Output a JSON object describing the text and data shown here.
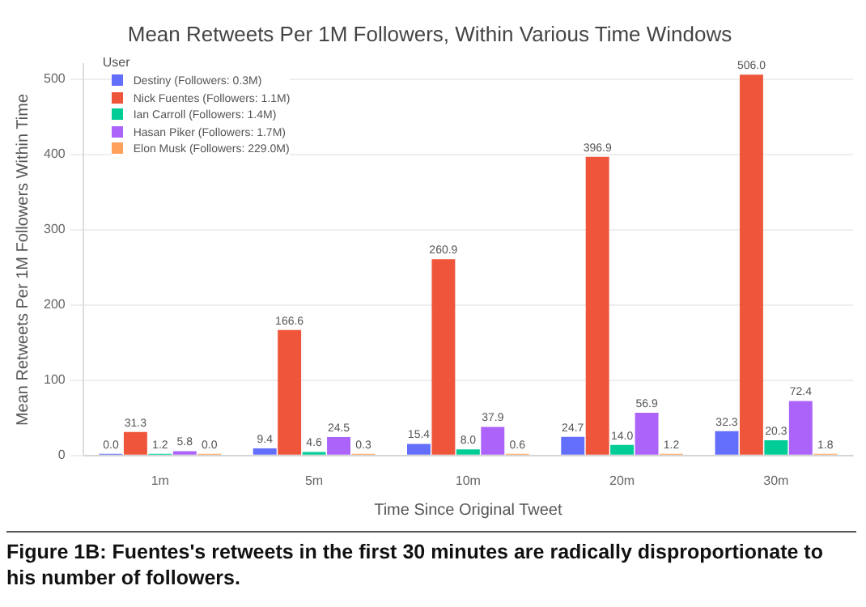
{
  "chart_data": {
    "type": "bar",
    "title": "Mean Retweets Per 1M Followers, Within Various Time Windows",
    "xlabel": "Time Since Original Tweet",
    "ylabel": "Mean Retweets Per 1M Followers Within Time",
    "legend_title": "User",
    "categories": [
      "1m",
      "5m",
      "10m",
      "20m",
      "30m"
    ],
    "series": [
      {
        "name": "Destiny (Followers: 0.3M)",
        "color": "#636efa",
        "values": [
          0.0,
          9.4,
          15.4,
          24.7,
          32.3
        ],
        "value_labels": [
          "0.0",
          "9.4",
          "15.4",
          "24.7",
          "32.3"
        ]
      },
      {
        "name": "Nick Fuentes (Followers: 1.1M)",
        "color": "#ef553b",
        "values": [
          31.3,
          166.6,
          260.9,
          396.9,
          506.0
        ],
        "value_labels": [
          "31.3",
          "166.6",
          "260.9",
          "396.9",
          "506.0"
        ]
      },
      {
        "name": "Ian Carroll (Followers: 1.4M)",
        "color": "#00cc96",
        "values": [
          1.2,
          4.6,
          8.0,
          14.0,
          20.3
        ],
        "value_labels": [
          "1.2",
          "4.6",
          "8.0",
          "14.0",
          "20.3"
        ]
      },
      {
        "name": "Hasan Piker (Followers: 1.7M)",
        "color": "#ab63fa",
        "values": [
          5.8,
          24.5,
          37.9,
          56.9,
          72.4
        ],
        "value_labels": [
          "5.8",
          "24.5",
          "37.9",
          "56.9",
          "72.4"
        ]
      },
      {
        "name": "Elon Musk (Followers: 229.0M)",
        "color": "#ffa15a",
        "values": [
          0.0,
          0.3,
          0.6,
          1.2,
          1.8
        ],
        "value_labels": [
          "0.0",
          "0.3",
          "0.6",
          "1.2",
          "1.8"
        ]
      }
    ],
    "ylim": [
      0,
      520
    ],
    "yticks": [
      0,
      100,
      200,
      300,
      400,
      500
    ],
    "grid": "y",
    "legend": "top left",
    "annotations": [
      "Figure 1B: Fuentes's retweets in the first 30 minutes are radically disproportionate to his number of followers."
    ]
  }
}
